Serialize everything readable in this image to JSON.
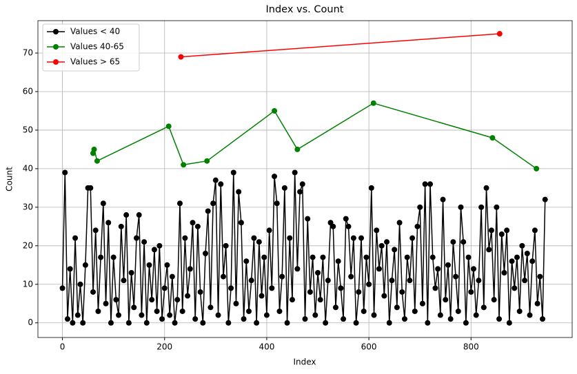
{
  "chart_data": {
    "type": "line",
    "title": "Index vs. Count",
    "x_label": "Index",
    "y_label": "Count",
    "xlim": [
      -48,
      998
    ],
    "ylim": [
      -3.8,
      78.4
    ],
    "xticks": [
      0,
      200,
      400,
      600,
      800
    ],
    "yticks": [
      0,
      10,
      20,
      30,
      40,
      50,
      60,
      70
    ],
    "grid": true,
    "legend": "upper-left",
    "series": [
      {
        "name": "Values < 40",
        "color": "#000000",
        "x": [
          0,
          5,
          10,
          15,
          20,
          25,
          30,
          35,
          40,
          45,
          50,
          55,
          60,
          65,
          70,
          75,
          80,
          85,
          90,
          95,
          100,
          105,
          110,
          115,
          120,
          125,
          130,
          135,
          140,
          145,
          150,
          155,
          160,
          165,
          170,
          175,
          180,
          185,
          190,
          195,
          200,
          205,
          210,
          215,
          220,
          225,
          230,
          235,
          240,
          245,
          250,
          255,
          260,
          265,
          270,
          275,
          280,
          285,
          290,
          295,
          300,
          305,
          310,
          315,
          320,
          325,
          330,
          335,
          340,
          345,
          350,
          355,
          360,
          365,
          370,
          375,
          380,
          385,
          390,
          395,
          400,
          405,
          410,
          415,
          420,
          425,
          430,
          435,
          440,
          445,
          450,
          455,
          460,
          465,
          470,
          475,
          480,
          485,
          490,
          495,
          500,
          505,
          510,
          515,
          520,
          525,
          530,
          535,
          540,
          545,
          550,
          555,
          560,
          565,
          570,
          575,
          580,
          585,
          590,
          595,
          600,
          605,
          610,
          615,
          620,
          625,
          630,
          635,
          640,
          645,
          650,
          655,
          660,
          665,
          670,
          675,
          680,
          685,
          690,
          695,
          700,
          705,
          710,
          715,
          720,
          725,
          730,
          735,
          740,
          745,
          750,
          755,
          760,
          765,
          770,
          775,
          780,
          785,
          790,
          795,
          800,
          805,
          810,
          815,
          820,
          825,
          830,
          835,
          840,
          845,
          850,
          855,
          860,
          865,
          870,
          875,
          880,
          885,
          890,
          895,
          900,
          905,
          910,
          915,
          920,
          925,
          930,
          935,
          940,
          945
        ],
        "values": [
          9,
          39,
          1,
          14,
          0,
          22,
          2,
          10,
          0,
          15,
          35,
          35,
          8,
          24,
          3,
          17,
          31,
          5,
          26,
          0,
          17,
          6,
          2,
          25,
          11,
          28,
          0,
          13,
          4,
          22,
          28,
          2,
          21,
          0,
          15,
          6,
          19,
          3,
          20,
          1,
          9,
          15,
          2,
          12,
          0,
          6,
          31,
          3,
          22,
          7,
          14,
          26,
          1,
          25,
          8,
          0,
          18,
          29,
          4,
          31,
          37,
          2,
          36,
          12,
          20,
          0,
          9,
          39,
          5,
          34,
          26,
          1,
          16,
          3,
          11,
          22,
          0,
          21,
          7,
          17,
          2,
          24,
          9,
          38,
          31,
          3,
          12,
          35,
          0,
          22,
          6,
          39,
          14,
          34,
          36,
          1,
          27,
          8,
          17,
          2,
          13,
          6,
          17,
          0,
          11,
          26,
          25,
          4,
          16,
          9,
          1,
          27,
          25,
          12,
          22,
          0,
          8,
          22,
          3,
          17,
          10,
          35,
          2,
          24,
          14,
          20,
          7,
          21,
          0,
          11,
          19,
          4,
          26,
          8,
          1,
          17,
          11,
          22,
          3,
          25,
          30,
          5,
          36,
          0,
          36,
          17,
          9,
          14,
          2,
          32,
          6,
          15,
          1,
          21,
          12,
          3,
          30,
          21,
          0,
          17,
          8,
          14,
          2,
          11,
          30,
          4,
          35,
          19,
          24,
          6,
          30,
          1,
          23,
          13,
          24,
          0,
          16,
          9,
          17,
          3,
          20,
          11,
          18,
          2,
          16,
          24,
          5,
          12,
          1,
          32
        ]
      },
      {
        "name": "Values 40-65",
        "color": "#008000",
        "x": [
          60,
          62,
          68,
          208,
          237,
          283,
          415,
          460,
          609,
          842,
          928
        ],
        "values": [
          44,
          45,
          42,
          51,
          41,
          42,
          55,
          45,
          57,
          48,
          40
        ]
      },
      {
        "name": "Values > 65",
        "color": "#ff0000",
        "x": [
          232,
          856
        ],
        "values": [
          69,
          75
        ]
      }
    ]
  }
}
